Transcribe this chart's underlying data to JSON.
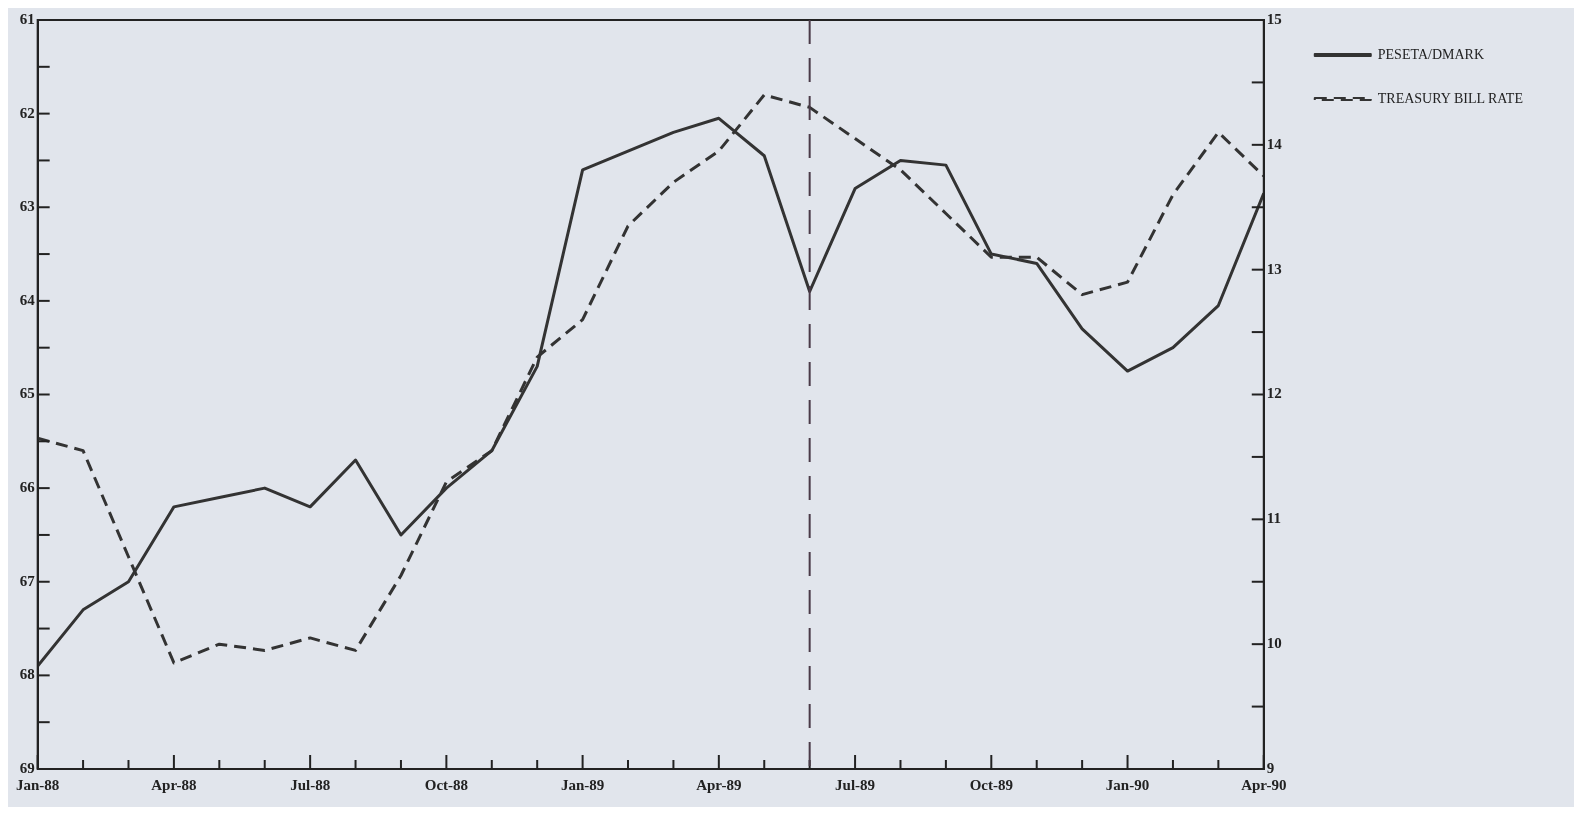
{
  "chart_data": {
    "type": "line",
    "x": [
      "1988-01",
      "1988-02",
      "1988-03",
      "1988-04",
      "1988-05",
      "1988-06",
      "1988-07",
      "1988-08",
      "1988-09",
      "1988-10",
      "1988-11",
      "1988-12",
      "1989-01",
      "1989-02",
      "1989-03",
      "1989-04",
      "1989-05",
      "1989-06",
      "1989-07",
      "1989-08",
      "1989-09",
      "1989-10",
      "1989-11",
      "1989-12",
      "1990-01",
      "1990-02",
      "1990-03",
      "1990-04"
    ],
    "series": [
      {
        "name": "PESETA/DMARK",
        "color": "#333333",
        "line_style": "solid",
        "values": [
          67.9,
          67.3,
          67.0,
          66.2,
          66.1,
          66.0,
          66.2,
          65.7,
          66.5,
          66.0,
          65.6,
          64.7,
          62.6,
          62.4,
          62.2,
          62.05,
          62.45,
          63.9,
          62.8,
          62.5,
          62.55,
          63.5,
          63.6,
          64.3,
          64.75,
          64.5,
          64.05,
          62.85
        ]
      },
      {
        "name": "TREASURY BILL RATE",
        "color": "#333333",
        "line_style": "dashed",
        "axis": "y2",
        "values": [
          11.65,
          11.55,
          10.7,
          9.85,
          10.0,
          9.95,
          10.05,
          9.95,
          10.55,
          11.3,
          11.55,
          12.3,
          12.6,
          13.35,
          13.7,
          13.95,
          14.4,
          14.3,
          14.05,
          13.8,
          13.45,
          13.1,
          13.1,
          12.8,
          12.9,
          13.6,
          14.1,
          13.75
        ]
      }
    ],
    "xlim": [
      "1988-01",
      "1990-04"
    ],
    "xticks": [
      {
        "value": "1988-01",
        "label": "Jan-88"
      },
      {
        "value": "1988-02",
        "label": null
      },
      {
        "value": "1988-03",
        "label": null
      },
      {
        "value": "1988-04",
        "label": "Apr-88"
      },
      {
        "value": "1988-05",
        "label": null
      },
      {
        "value": "1988-06",
        "label": null
      },
      {
        "value": "1988-07",
        "label": "Jul-88"
      },
      {
        "value": "1988-08",
        "label": null
      },
      {
        "value": "1988-09",
        "label": null
      },
      {
        "value": "1988-10",
        "label": "Oct-88"
      },
      {
        "value": "1988-11",
        "label": null
      },
      {
        "value": "1988-12",
        "label": null
      },
      {
        "value": "1989-01",
        "label": "Jan-89"
      },
      {
        "value": "1989-02",
        "label": null
      },
      {
        "value": "1989-03",
        "label": null
      },
      {
        "value": "1989-04",
        "label": "Apr-89"
      },
      {
        "value": "1989-05",
        "label": null
      },
      {
        "value": "1989-06",
        "label": null
      },
      {
        "value": "1989-07",
        "label": "Jul-89"
      },
      {
        "value": "1989-08",
        "label": null
      },
      {
        "value": "1989-09",
        "label": null
      },
      {
        "value": "1989-10",
        "label": "Oct-89"
      },
      {
        "value": "1989-11",
        "label": null
      },
      {
        "value": "1989-12",
        "label": null
      },
      {
        "value": "1990-01",
        "label": "Jan-90"
      },
      {
        "value": "1990-02",
        "label": null
      },
      {
        "value": "1990-03",
        "label": null
      },
      {
        "value": "1990-04",
        "label": "Apr-90"
      }
    ],
    "ylim": [
      69,
      61
    ],
    "yticks": [
      61,
      {
        "value": 61.5,
        "label": null
      },
      62,
      {
        "value": 62.5,
        "label": null
      },
      63,
      {
        "value": 63.5,
        "label": null
      },
      64,
      {
        "value": 64.5,
        "label": null
      },
      65,
      {
        "value": 65.5,
        "label": null
      },
      66,
      {
        "value": 66.5,
        "label": null
      },
      67,
      {
        "value": 67.5,
        "label": null
      },
      68,
      {
        "value": 68.5,
        "label": null
      },
      69
    ],
    "y2lim": [
      9,
      15
    ],
    "y2ticks": [
      9,
      {
        "value": 9.5,
        "label": null
      },
      10,
      {
        "value": 10.5,
        "label": null
      },
      11,
      {
        "value": 11.5,
        "label": null
      },
      12,
      {
        "value": 12.5,
        "label": null
      },
      13,
      {
        "value": 13.5,
        "label": null
      },
      14,
      {
        "value": 14.5,
        "label": null
      },
      15
    ],
    "ref_lines": [
      {
        "axis": "x",
        "value": "1989-06",
        "color": "#4a3a48",
        "line_style": "dashed"
      }
    ],
    "grid": false,
    "legend": "top right",
    "marker": "none"
  }
}
